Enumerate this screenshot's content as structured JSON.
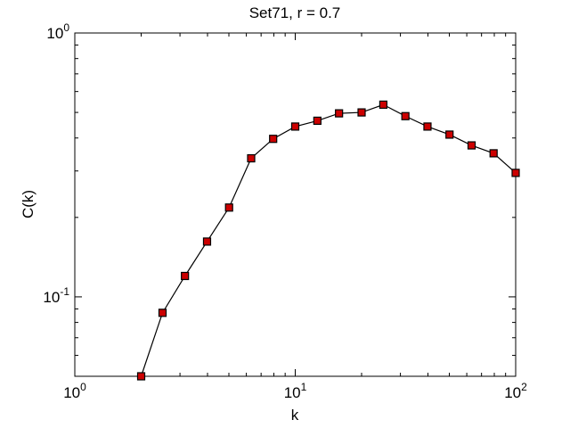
{
  "chart_data": {
    "type": "line",
    "title": "Set71, r = 0.7",
    "xlabel": "k",
    "ylabel": "C(k)",
    "xscale": "log",
    "yscale": "log",
    "xlim": [
      1,
      100
    ],
    "ylim": [
      0.05,
      1
    ],
    "grid": false,
    "x_ticks": [
      {
        "value": 1,
        "base": "10",
        "exp": "0"
      },
      {
        "value": 10,
        "base": "10",
        "exp": "1"
      },
      {
        "value": 100,
        "base": "10",
        "exp": "2"
      }
    ],
    "y_ticks": [
      {
        "value": 0.1,
        "base": "10",
        "exp": "-1"
      },
      {
        "value": 1,
        "base": "10",
        "exp": "0"
      }
    ],
    "series": [
      {
        "line_color": "#000000",
        "marker": "square",
        "marker_face": "#cc0000",
        "marker_edge": "#000000",
        "x": [
          2,
          2.5,
          3.16,
          3.98,
          5.01,
          6.31,
          7.94,
          10,
          12.6,
          15.8,
          20,
          25.1,
          31.6,
          39.8,
          50.1,
          63.1,
          79.4,
          100
        ],
        "y": [
          0.05,
          0.087,
          0.12,
          0.162,
          0.218,
          0.335,
          0.397,
          0.442,
          0.465,
          0.496,
          0.5,
          0.535,
          0.484,
          0.442,
          0.412,
          0.375,
          0.35,
          0.295
        ]
      }
    ]
  }
}
